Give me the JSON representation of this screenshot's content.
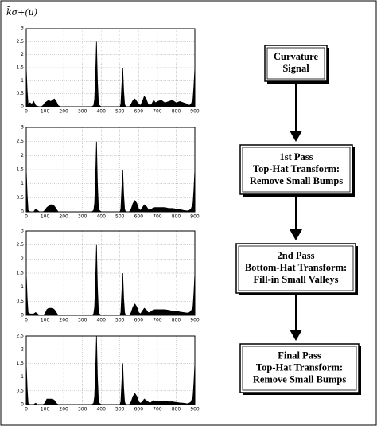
{
  "chart_data": [
    {
      "type": "area",
      "ylabel": "k̄σ+(u)",
      "color": "#000000",
      "grid": true,
      "xlim": [
        0,
        900
      ],
      "xticks": [
        0,
        100,
        200,
        300,
        400,
        500,
        600,
        700,
        800,
        900
      ],
      "ylim": [
        0,
        3
      ],
      "yticks": [
        0,
        0.5,
        1,
        1.5,
        2,
        2.5,
        3
      ],
      "x": [
        0,
        5,
        10,
        20,
        30,
        40,
        50,
        60,
        70,
        80,
        90,
        100,
        110,
        120,
        130,
        140,
        150,
        160,
        170,
        180,
        200,
        250,
        300,
        350,
        360,
        365,
        370,
        375,
        380,
        385,
        390,
        400,
        450,
        500,
        505,
        510,
        515,
        520,
        525,
        530,
        540,
        550,
        560,
        570,
        580,
        590,
        600,
        610,
        620,
        630,
        640,
        650,
        660,
        670,
        680,
        690,
        700,
        720,
        740,
        760,
        780,
        800,
        820,
        840,
        860,
        870,
        880,
        890,
        895,
        900
      ],
      "values": [
        1.5,
        0.6,
        0.1,
        0.15,
        0.1,
        0.2,
        0.05,
        0.02,
        0,
        0,
        0.05,
        0.15,
        0.2,
        0.25,
        0.2,
        0.25,
        0.3,
        0.2,
        0.05,
        0,
        0,
        0,
        0,
        0,
        0.05,
        0.3,
        1.2,
        2.5,
        1.0,
        0.2,
        0.05,
        0,
        0,
        0,
        0.1,
        0.8,
        1.5,
        0.6,
        0.1,
        0,
        0,
        0,
        0.1,
        0.25,
        0.3,
        0.2,
        0.1,
        0.05,
        0.2,
        0.4,
        0.3,
        0.1,
        0.05,
        0.1,
        0.25,
        0.15,
        0.2,
        0.25,
        0.15,
        0.2,
        0.25,
        0.15,
        0.2,
        0.15,
        0.1,
        0.05,
        0.1,
        0.3,
        0.8,
        1.5
      ]
    },
    {
      "type": "area",
      "color": "#000000",
      "grid": true,
      "xlim": [
        0,
        900
      ],
      "xticks": [
        0,
        100,
        200,
        300,
        400,
        500,
        600,
        700,
        800,
        900
      ],
      "ylim": [
        0,
        3
      ],
      "yticks": [
        0,
        0.5,
        1,
        1.5,
        2,
        2.5,
        3
      ],
      "x": [
        0,
        5,
        10,
        20,
        30,
        40,
        50,
        60,
        70,
        80,
        90,
        100,
        110,
        120,
        130,
        140,
        150,
        160,
        170,
        180,
        200,
        250,
        300,
        350,
        360,
        365,
        370,
        375,
        380,
        385,
        390,
        400,
        450,
        500,
        505,
        510,
        515,
        520,
        525,
        530,
        540,
        550,
        560,
        570,
        580,
        590,
        600,
        610,
        620,
        630,
        640,
        650,
        660,
        670,
        680,
        690,
        700,
        720,
        740,
        760,
        780,
        800,
        820,
        840,
        860,
        870,
        880,
        890,
        895,
        900
      ],
      "values": [
        1.5,
        0.6,
        0.05,
        0,
        0,
        0,
        0.1,
        0.05,
        0,
        0,
        0,
        0.05,
        0.15,
        0.2,
        0.25,
        0.25,
        0.2,
        0.1,
        0,
        0,
        0,
        0,
        0,
        0,
        0.05,
        0.3,
        1.2,
        2.5,
        1.0,
        0.2,
        0.05,
        0,
        0,
        0,
        0.1,
        0.8,
        1.5,
        0.6,
        0.1,
        0,
        0,
        0,
        0.1,
        0.3,
        0.4,
        0.3,
        0.1,
        0.05,
        0.15,
        0.25,
        0.2,
        0.1,
        0.05,
        0.1,
        0.15,
        0.15,
        0.15,
        0.15,
        0.15,
        0.12,
        0.12,
        0.1,
        0.08,
        0.05,
        0.03,
        0.05,
        0.1,
        0.3,
        0.8,
        1.5
      ]
    },
    {
      "type": "area",
      "color": "#000000",
      "grid": true,
      "xlim": [
        0,
        900
      ],
      "xticks": [
        0,
        100,
        200,
        300,
        400,
        500,
        600,
        700,
        800,
        900
      ],
      "ylim": [
        0,
        3
      ],
      "yticks": [
        0,
        0.5,
        1,
        1.5,
        2,
        2.5,
        3
      ],
      "x": [
        0,
        5,
        10,
        20,
        30,
        40,
        50,
        60,
        70,
        80,
        90,
        100,
        110,
        120,
        130,
        140,
        150,
        160,
        170,
        180,
        200,
        250,
        300,
        350,
        360,
        365,
        370,
        375,
        380,
        385,
        390,
        400,
        450,
        500,
        505,
        510,
        515,
        520,
        525,
        530,
        540,
        550,
        560,
        570,
        580,
        590,
        600,
        610,
        620,
        630,
        640,
        650,
        660,
        670,
        680,
        690,
        700,
        720,
        740,
        760,
        780,
        800,
        820,
        840,
        860,
        870,
        880,
        890,
        895,
        900
      ],
      "values": [
        1.5,
        0.6,
        0.1,
        0.05,
        0.05,
        0.05,
        0.1,
        0.05,
        0,
        0,
        0,
        0.05,
        0.2,
        0.25,
        0.25,
        0.25,
        0.2,
        0.1,
        0,
        0,
        0,
        0,
        0,
        0,
        0.05,
        0.3,
        1.2,
        2.5,
        1.0,
        0.2,
        0.05,
        0,
        0,
        0,
        0.1,
        0.8,
        1.5,
        0.6,
        0.1,
        0,
        0,
        0,
        0.1,
        0.3,
        0.4,
        0.3,
        0.1,
        0.05,
        0.15,
        0.25,
        0.2,
        0.1,
        0.1,
        0.15,
        0.2,
        0.2,
        0.2,
        0.2,
        0.2,
        0.18,
        0.15,
        0.15,
        0.12,
        0.1,
        0.08,
        0.1,
        0.15,
        0.3,
        0.8,
        1.5
      ]
    },
    {
      "type": "area",
      "color": "#000000",
      "grid": true,
      "xlim": [
        0,
        900
      ],
      "xticks": [
        0,
        100,
        200,
        300,
        400,
        500,
        600,
        700,
        800,
        900
      ],
      "ylim": [
        0,
        2.5
      ],
      "yticks": [
        0,
        0.5,
        1,
        1.5,
        2,
        2.5
      ],
      "x": [
        0,
        5,
        10,
        20,
        30,
        40,
        50,
        60,
        70,
        80,
        90,
        100,
        110,
        120,
        130,
        140,
        150,
        160,
        170,
        180,
        200,
        250,
        300,
        350,
        360,
        365,
        370,
        375,
        380,
        385,
        390,
        400,
        450,
        500,
        505,
        510,
        515,
        520,
        525,
        530,
        540,
        550,
        560,
        570,
        580,
        590,
        600,
        610,
        620,
        630,
        640,
        650,
        660,
        670,
        680,
        690,
        700,
        720,
        740,
        760,
        780,
        800,
        820,
        840,
        860,
        870,
        880,
        890,
        895,
        900
      ],
      "values": [
        1.5,
        0.6,
        0.05,
        0,
        0,
        0,
        0.05,
        0,
        0,
        0,
        0,
        0.05,
        0.2,
        0.2,
        0.2,
        0.2,
        0.15,
        0.05,
        0,
        0,
        0,
        0,
        0,
        0,
        0.05,
        0.3,
        1.2,
        2.5,
        1.0,
        0.2,
        0.05,
        0,
        0,
        0,
        0.1,
        0.8,
        1.5,
        0.6,
        0.1,
        0,
        0,
        0,
        0.1,
        0.3,
        0.4,
        0.3,
        0.1,
        0.05,
        0.1,
        0.2,
        0.15,
        0.1,
        0.05,
        0.1,
        0.15,
        0.12,
        0.12,
        0.12,
        0.12,
        0.1,
        0.1,
        0.08,
        0.06,
        0.05,
        0.03,
        0.05,
        0.1,
        0.3,
        0.8,
        1.5
      ]
    }
  ],
  "flowchart": {
    "nodes": [
      {
        "lines": [
          "Curvature",
          "Signal"
        ]
      },
      {
        "lines": [
          "1st Pass",
          "Top-Hat Transform:",
          "Remove Small Bumps"
        ]
      },
      {
        "lines": [
          "2nd Pass",
          "Bottom-Hat Transform:",
          "Fill-in Small Valleys"
        ]
      },
      {
        "lines": [
          "Final Pass",
          "Top-Hat Transform:",
          "Remove Small Bumps"
        ]
      }
    ]
  }
}
